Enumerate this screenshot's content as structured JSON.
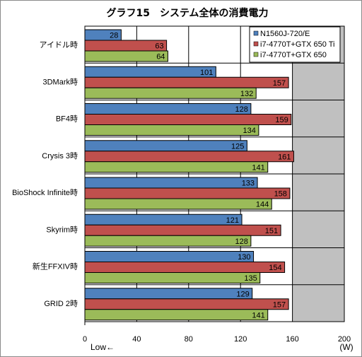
{
  "chart_data": {
    "type": "bar",
    "orientation": "horizontal",
    "title": "グラフ15　システム全体の消費電力",
    "categories": [
      "アイドル時",
      "3DMark時",
      "BF4時",
      "Crysis 3時",
      "BioShock Infinite時",
      "Skyrim時",
      "新生FFXIV時",
      "GRID 2時"
    ],
    "series": [
      {
        "name": "N1560J-720/E",
        "color": "#4f81bd",
        "values": [
          28,
          101,
          128,
          125,
          133,
          121,
          130,
          129
        ]
      },
      {
        "name": "i7-4770T+GTX 650 Ti",
        "color": "#c0504d",
        "values": [
          63,
          157,
          159,
          161,
          158,
          151,
          154,
          157
        ]
      },
      {
        "name": "i7-4770T+GTX 650",
        "color": "#9bbb59",
        "values": [
          64,
          132,
          134,
          141,
          144,
          128,
          135,
          141
        ]
      }
    ],
    "xlim": [
      0,
      200
    ],
    "xticks": [
      "0",
      "40",
      "80",
      "120",
      "160",
      "200"
    ],
    "x_unit": "(W)",
    "x_direction_note": "Low←",
    "grid": true,
    "legend_position": "top-right",
    "plot_background": "#c0c0c0",
    "highlight_band": {
      "from": 0,
      "to": 160,
      "color": "#ffffff"
    }
  }
}
